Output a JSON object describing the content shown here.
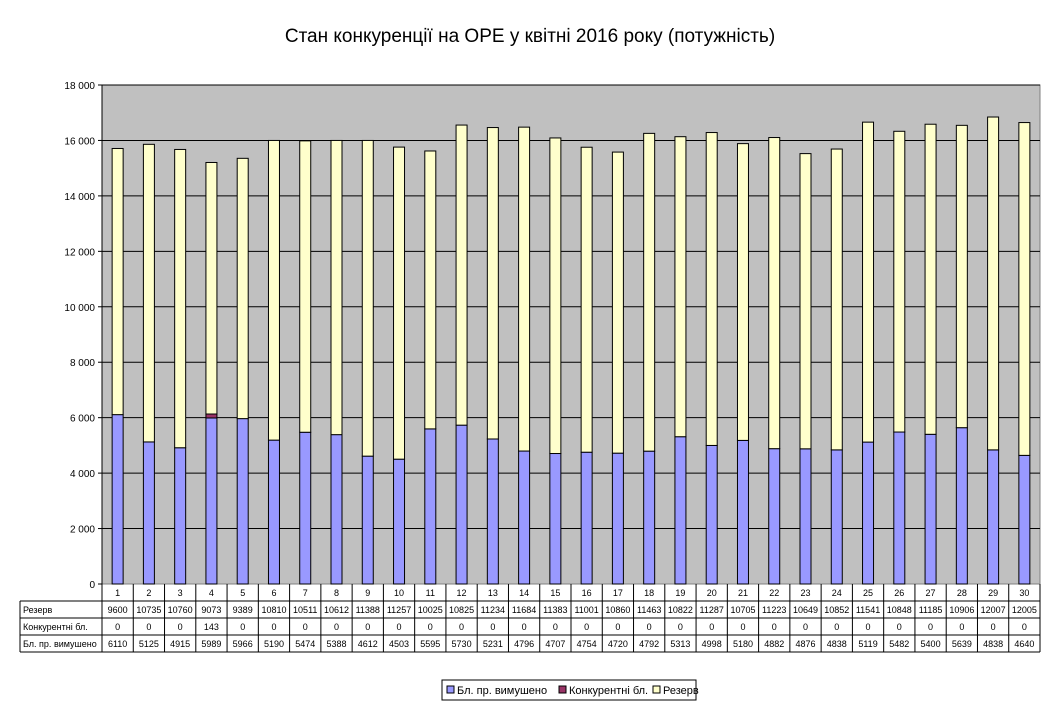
{
  "chart_data": {
    "type": "bar",
    "stacked": true,
    "title": "Стан конкуренції на ОРЕ  у квітні 2016 року (потужність)",
    "categories": [
      "1",
      "2",
      "3",
      "4",
      "5",
      "6",
      "7",
      "8",
      "9",
      "10",
      "11",
      "12",
      "13",
      "14",
      "15",
      "16",
      "17",
      "18",
      "19",
      "20",
      "21",
      "22",
      "23",
      "24",
      "25",
      "26",
      "27",
      "28",
      "29",
      "30"
    ],
    "series": [
      {
        "name": "Бл. пр. вимушено",
        "color": "#9999ff",
        "values": [
          6110,
          5125,
          4915,
          5989,
          5966,
          5190,
          5474,
          5388,
          4612,
          4503,
          5595,
          5730,
          5231,
          4796,
          4707,
          4754,
          4720,
          4792,
          5313,
          4998,
          5180,
          4882,
          4876,
          4838,
          5119,
          5482,
          5400,
          5639,
          4838,
          4640
        ]
      },
      {
        "name": "Конкурентні бл.",
        "color": "#993366",
        "values": [
          0,
          0,
          0,
          143,
          0,
          0,
          0,
          0,
          0,
          0,
          0,
          0,
          0,
          0,
          0,
          0,
          0,
          0,
          0,
          0,
          0,
          0,
          0,
          0,
          0,
          0,
          0,
          0,
          0,
          0
        ]
      },
      {
        "name": "Резерв",
        "color": "#ffffcc",
        "values": [
          9600,
          10735,
          10760,
          9073,
          9389,
          10810,
          10511,
          10612,
          11388,
          11257,
          10025,
          10825,
          11234,
          11684,
          11383,
          11001,
          10860,
          11463,
          10822,
          11287,
          10705,
          11223,
          10649,
          10852,
          11541,
          10848,
          11185,
          10906,
          12007,
          12005
        ]
      }
    ],
    "y_ticks": [
      "0",
      "2 000",
      "4 000",
      "6 000",
      "8 000",
      "10 000",
      "12 000",
      "14 000",
      "16 000",
      "18 000"
    ],
    "ylim": [
      0,
      18000
    ],
    "grid": true,
    "plot_background": "#c0c0c0",
    "data_table": true,
    "table_row_order": [
      "Резерв",
      "Конкурентні бл.",
      "Бл. пр. вимушено"
    ],
    "legend_placement": "bottom"
  }
}
